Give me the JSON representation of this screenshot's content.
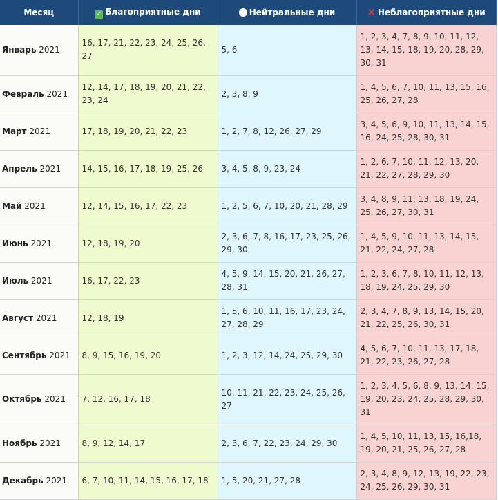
{
  "header": {
    "month": "Месяц",
    "favorable": "Благоприятные дни",
    "neutral": "Нейтральные дни",
    "unfavorable": "Неблагоприятные дни",
    "icons": {
      "favorable": "check-icon",
      "neutral": "circle-icon",
      "unfavorable": "cross-icon"
    }
  },
  "colors": {
    "header": "#1d4a7a",
    "favorable": "#eefbcf",
    "neutral": "#dff6fd",
    "unfavorable": "#f9d3d2"
  },
  "rows": [
    {
      "month": "Январь",
      "year": "2021",
      "favorable": "16, 17, 21, 22, 23, 24, 25, 26, 27",
      "neutral": "5, 6",
      "unfavorable": "1, 2, 3, 4, 7, 8, 9, 10, 11, 12, 13, 14, 15, 18, 19, 20, 28, 29, 30, 31"
    },
    {
      "month": "Февраль",
      "year": "2021",
      "favorable": "12, 14, 17, 18, 19, 20, 21, 22, 23, 24",
      "neutral": "2, 3, 8, 9",
      "unfavorable": "1, 4, 5, 6, 7, 10, 11, 13, 15, 16, 25, 26, 27, 28"
    },
    {
      "month": "Март",
      "year": "2021",
      "favorable": "17, 18, 19, 20, 21, 22, 23",
      "neutral": "1, 2, 7, 8, 12, 26, 27, 29",
      "unfavorable": "3, 4, 5, 6, 9, 10, 11, 13, 14, 15, 16, 24, 25, 28, 30, 31"
    },
    {
      "month": "Апрель",
      "year": "2021",
      "favorable": "14, 15, 16, 17, 18, 19, 25, 26",
      "neutral": "3, 4, 5, 8, 9, 23, 24",
      "unfavorable": "1, 2, 6, 7, 10, 11, 12, 13, 20, 21, 22, 27, 28, 29, 30"
    },
    {
      "month": "Май",
      "year": "2021",
      "favorable": "12, 14, 15, 16, 17, 22, 23",
      "neutral": "1, 2, 5, 6, 7, 10, 20, 21, 28, 29",
      "unfavorable": "3, 4, 8, 9, 11, 13, 18, 19, 24, 25, 26, 27, 30, 31"
    },
    {
      "month": "Июнь",
      "year": "2021",
      "favorable": "12, 18, 19, 20",
      "neutral": "2, 3, 6, 7, 8, 16, 17, 23, 25, 26, 29, 30",
      "unfavorable": "1, 4, 5, 9, 10, 11, 13, 14, 15, 21, 22, 24, 27, 28"
    },
    {
      "month": "Июль",
      "year": "2021",
      "favorable": "16, 17, 22, 23",
      "neutral": "4, 5, 9, 14, 15, 20, 21, 26, 27, 28, 31",
      "unfavorable": "1, 2, 3, 6, 7, 8, 10, 11, 12, 13, 18, 19, 24, 25, 29, 30"
    },
    {
      "month": "Август",
      "year": "2021",
      "favorable": "12, 18, 19",
      "neutral": "1, 5, 6, 10, 11, 16, 17, 23, 24, 27, 28, 29",
      "unfavorable": "2, 3, 4, 7, 8, 9, 13, 14, 15, 20, 21, 22, 25, 26, 30, 31"
    },
    {
      "month": "Сентябрь",
      "year": "2021",
      "favorable": "8, 9, 15, 16, 19, 20",
      "neutral": "1, 2, 3, 12, 14, 24, 25, 29, 30",
      "unfavorable": "4, 5, 6, 7, 10, 11, 13, 17, 18, 21, 22, 23, 26, 27, 28"
    },
    {
      "month": "Октябрь",
      "year": "2021",
      "favorable": "7, 12, 16, 17, 18",
      "neutral": "10, 11, 21, 22, 23, 24, 25, 26, 27",
      "unfavorable": "1, 2, 3, 4, 5, 6, 8, 9, 13, 14, 15, 19, 20, 23, 24, 25, 28, 29, 30, 31"
    },
    {
      "month": "Ноябрь",
      "year": "2021",
      "favorable": "8, 9, 12, 14, 17",
      "neutral": "2, 3, 6, 7, 22, 23, 24, 29, 30",
      "unfavorable": "1, 4, 5, 10, 11, 13, 15, 16,18, 19, 20, 21, 25, 26, 27, 28"
    },
    {
      "month": "Декабрь",
      "year": "2021",
      "favorable": "6, 7, 10, 11, 14, 15, 16, 17, 18",
      "neutral": "1, 5, 20, 21, 27, 28",
      "unfavorable": "2, 3, 4, 8, 9, 12, 13, 19, 22, 23, 24, 25, 26, 29, 30, 31"
    }
  ]
}
